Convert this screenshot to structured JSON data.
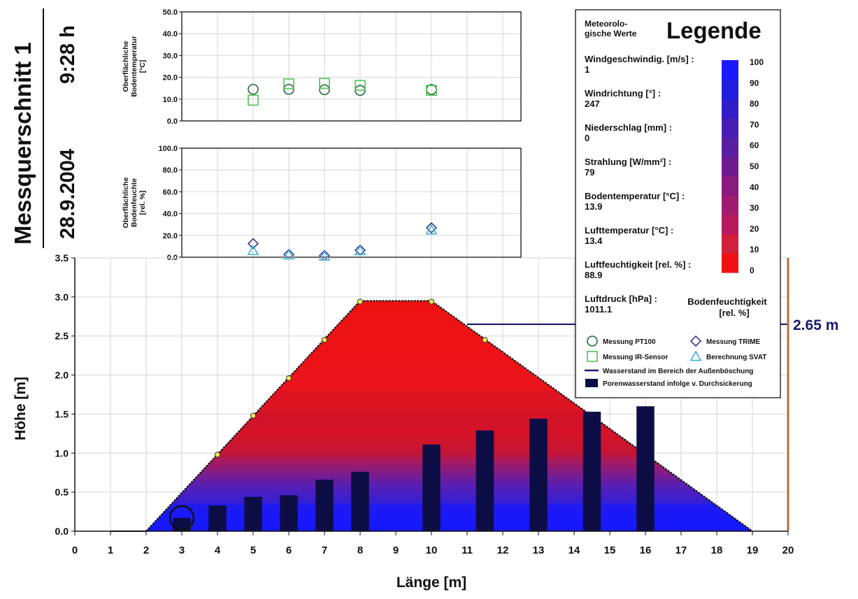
{
  "header": {
    "title": "Messquerschnitt 1",
    "date": "28.9.2004",
    "time": "9:28 h"
  },
  "chart_data": [
    {
      "type": "scatter",
      "id": "temperature",
      "ylabel_lines": [
        "Oberflächliche",
        "Bodentemperatur",
        "[°C]"
      ],
      "ylim": [
        0,
        50
      ],
      "yticks": [
        "0.0",
        "10.0",
        "20.0",
        "30.0",
        "40.0",
        "50.0"
      ],
      "xlim": [
        0,
        20
      ],
      "series": [
        {
          "name": "Messung PT100",
          "marker": "circle",
          "color": "#1f6b3a",
          "points": [
            {
              "x": 5,
              "y": 14.5
            },
            {
              "x": 6,
              "y": 14.5
            },
            {
              "x": 7,
              "y": 14.3
            },
            {
              "x": 8,
              "y": 14
            },
            {
              "x": 10,
              "y": 14.4
            }
          ]
        },
        {
          "name": "Messung IR-Sensor",
          "marker": "square",
          "color": "#53c253",
          "points": [
            {
              "x": 5,
              "y": 9.5
            },
            {
              "x": 6,
              "y": 17
            },
            {
              "x": 7,
              "y": 17.2
            },
            {
              "x": 8,
              "y": 16.3
            },
            {
              "x": 10,
              "y": 14
            }
          ]
        }
      ]
    },
    {
      "type": "scatter",
      "id": "moisture",
      "ylabel_lines": [
        "Oberflächliche",
        "Bodenfeuchte",
        "[rel. %]"
      ],
      "ylim": [
        0,
        100
      ],
      "yticks": [
        "0.0",
        "20.0",
        "40.0",
        "60.0",
        "80.0",
        "100.0"
      ],
      "xlim": [
        0,
        20
      ],
      "series": [
        {
          "name": "Messung TRIME",
          "marker": "diamond",
          "color": "#3c3c8c",
          "points": [
            {
              "x": 5,
              "y": 12.5
            },
            {
              "x": 6,
              "y": 2.5
            },
            {
              "x": 7,
              "y": 1.5
            },
            {
              "x": 8,
              "y": 6.5
            },
            {
              "x": 10,
              "y": 27
            }
          ]
        },
        {
          "name": "Berechnung SVAT",
          "marker": "triangle",
          "color": "#3cb4dc",
          "points": [
            {
              "x": 5,
              "y": 6
            },
            {
              "x": 6,
              "y": 2
            },
            {
              "x": 7,
              "y": 1
            },
            {
              "x": 8,
              "y": 6
            },
            {
              "x": 10,
              "y": 25
            }
          ]
        }
      ]
    },
    {
      "type": "area",
      "id": "cross-section",
      "xlabel": "Länge [m]",
      "ylabel": "Höhe [m]",
      "xlim": [
        0,
        20
      ],
      "ylim": [
        0,
        3.5
      ],
      "xticks": [
        "0",
        "1",
        "2",
        "3",
        "4",
        "5",
        "6",
        "7",
        "8",
        "9",
        "10",
        "11",
        "12",
        "13",
        "14",
        "15",
        "16",
        "17",
        "18",
        "19",
        "20"
      ],
      "yticks": [
        "0.0",
        "0.5",
        "1.0",
        "1.5",
        "2.0",
        "2.5",
        "3.0",
        "3.5"
      ],
      "dike_profile": [
        {
          "x": 2,
          "y": 0
        },
        {
          "x": 8,
          "y": 2.95
        },
        {
          "x": 10,
          "y": 2.95
        },
        {
          "x": 19,
          "y": 0
        }
      ],
      "sensor_points": [
        {
          "x": 4,
          "y": 0.98
        },
        {
          "x": 5,
          "y": 1.48
        },
        {
          "x": 6,
          "y": 1.96
        },
        {
          "x": 7,
          "y": 2.45
        },
        {
          "x": 8,
          "y": 2.94
        },
        {
          "x": 10,
          "y": 2.94
        },
        {
          "x": 11.5,
          "y": 2.45
        }
      ],
      "bars": [
        {
          "x": 3,
          "value": 0.17
        },
        {
          "x": 4,
          "value": 0.33
        },
        {
          "x": 5,
          "value": 0.44
        },
        {
          "x": 6,
          "value": 0.46
        },
        {
          "x": 7,
          "value": 0.66
        },
        {
          "x": 8,
          "value": 0.76
        },
        {
          "x": 10,
          "value": 1.11
        },
        {
          "x": 11.5,
          "value": 1.29
        },
        {
          "x": 13,
          "value": 1.44
        },
        {
          "x": 14.5,
          "value": 1.53
        },
        {
          "x": 16,
          "value": 1.6
        }
      ],
      "water_level": {
        "value": 2.65,
        "label": "2.65 m",
        "x_from": 11,
        "x_to": 20
      },
      "highlight_circle": {
        "x": 3,
        "y": 0.17
      },
      "moisture_gradient": [
        {
          "y": 0.0,
          "color": "#1a1aff"
        },
        {
          "y": 0.2,
          "color": "#1e1ef0"
        },
        {
          "y": 0.4,
          "color": "#3a1fd0"
        },
        {
          "y": 0.6,
          "color": "#5a1fb0"
        },
        {
          "y": 0.85,
          "color": "#9a1a6a"
        },
        {
          "y": 1.05,
          "color": "#d01a3a"
        },
        {
          "y": 1.3,
          "color": "#e81520"
        },
        {
          "y": 3.0,
          "color": "#ee1111"
        }
      ]
    }
  ],
  "legend": {
    "heading_small": [
      "Meteorolo-",
      "gische Werte"
    ],
    "heading_large": "Legende",
    "items": [
      {
        "label": "Windgeschwindig. [m/s] :",
        "value": "1"
      },
      {
        "label": "Windrichtung [°] :",
        "value": "247"
      },
      {
        "label": "Niederschlag [mm] :",
        "value": "0"
      },
      {
        "label": "Strahlung [W/mm²] :",
        "value": "79"
      },
      {
        "label": "Bodentemperatur [°C] :",
        "value": "13.9"
      },
      {
        "label": "Lufttemperatur [°C] :",
        "value": "13.4"
      },
      {
        "label": "Luftfeuchtigkeit [rel. %] :",
        "value": "88.9"
      },
      {
        "label": "Luftdruck [hPa] :",
        "value": "1011.1"
      }
    ],
    "colorbar_title": [
      "Bodenfeuchtigkeit",
      "[rel. %]"
    ],
    "colorbar_ticks": [
      "100",
      "90",
      "80",
      "70",
      "60",
      "50",
      "40",
      "30",
      "20",
      "10",
      "0"
    ],
    "colorbar_colors": [
      "#ee1111",
      "#d21f3a",
      "#b81a5a",
      "#a01a70",
      "#881a80",
      "#701a90",
      "#5a1ea0",
      "#461eb4",
      "#321ec8",
      "#221ee0",
      "#1a1aff"
    ],
    "symbols": [
      {
        "label": "Messung PT100",
        "marker": "circle",
        "color": "#1f6b3a"
      },
      {
        "label": "Messung TRIME",
        "marker": "diamond",
        "color": "#3c3c8c"
      },
      {
        "label": "Messung IR-Sensor",
        "marker": "square",
        "color": "#53c253"
      },
      {
        "label": "Berechnung SVAT",
        "marker": "triangle",
        "color": "#3cb4dc"
      }
    ],
    "lines": [
      {
        "label": "Wasserstand im Bereich der Außenböschung",
        "kind": "line",
        "color": "#1a1a6e"
      },
      {
        "label": "Porenwasserstand infolge v. Durchsickerung",
        "kind": "bar",
        "color": "#0d0d45"
      }
    ]
  }
}
